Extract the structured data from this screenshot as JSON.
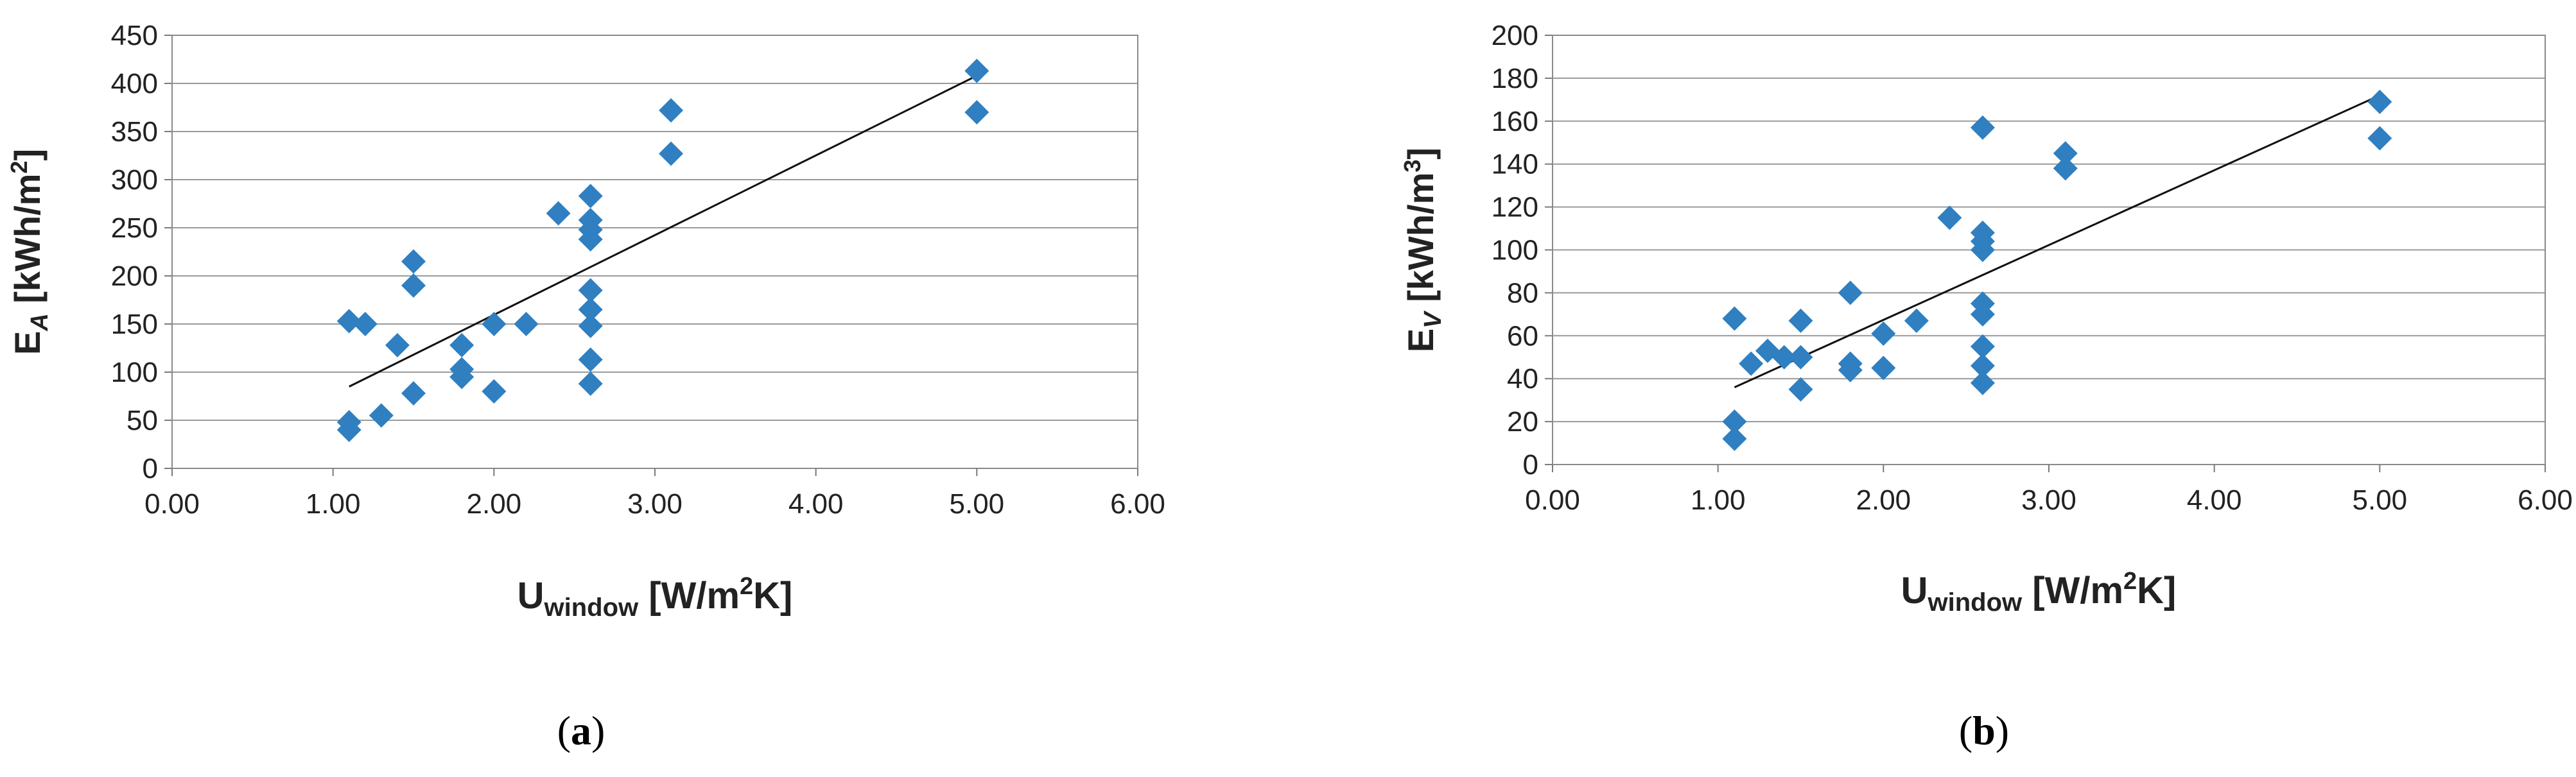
{
  "chart_data": [
    {
      "type": "scatter",
      "title": "",
      "panel_label": {
        "open": "(",
        "letter": "a",
        "close": ")"
      },
      "xlabel": {
        "main": "U",
        "sub": "window",
        "rest": " [W/m",
        "sup": "2",
        "rest2": "K]"
      },
      "ylabel": {
        "main": "E",
        "sub": "A",
        "rest": " [kWh/m",
        "sup": "2",
        "rest2": "]"
      },
      "xlim": [
        0,
        6
      ],
      "ylim": [
        0,
        450
      ],
      "xticks": [
        "0.00",
        "1.00",
        "2.00",
        "3.00",
        "4.00",
        "5.00",
        "6.00"
      ],
      "yticks": [
        "0",
        "50",
        "100",
        "150",
        "200",
        "250",
        "300",
        "350",
        "400",
        "450"
      ],
      "grid": "horizontal",
      "marker": "diamond",
      "marker_color": "#2f7fc1",
      "trendline": {
        "x": [
          1.1,
          5.0
        ],
        "y": [
          85,
          408
        ]
      },
      "points": [
        [
          1.1,
          153
        ],
        [
          1.1,
          48
        ],
        [
          1.1,
          40
        ],
        [
          1.2,
          150
        ],
        [
          1.3,
          55
        ],
        [
          1.4,
          128
        ],
        [
          1.5,
          215
        ],
        [
          1.5,
          190
        ],
        [
          1.5,
          78
        ],
        [
          1.8,
          128
        ],
        [
          1.8,
          103
        ],
        [
          1.8,
          95
        ],
        [
          2.0,
          150
        ],
        [
          2.0,
          80
        ],
        [
          2.2,
          150
        ],
        [
          2.4,
          265
        ],
        [
          2.6,
          283
        ],
        [
          2.6,
          258
        ],
        [
          2.6,
          248
        ],
        [
          2.6,
          238
        ],
        [
          2.6,
          185
        ],
        [
          2.6,
          165
        ],
        [
          2.6,
          148
        ],
        [
          2.6,
          113
        ],
        [
          2.6,
          88
        ],
        [
          3.1,
          372
        ],
        [
          3.1,
          327
        ],
        [
          5.0,
          413
        ],
        [
          5.0,
          370
        ]
      ]
    },
    {
      "type": "scatter",
      "title": "",
      "panel_label": {
        "open": "(",
        "letter": "b",
        "close": ")"
      },
      "xlabel": {
        "main": "U",
        "sub": "window",
        "rest": " [W/m",
        "sup": "2",
        "rest2": "K]"
      },
      "ylabel": {
        "main": "E",
        "sub": "V",
        "rest": " [kWh/m",
        "sup": "3",
        "rest2": "]"
      },
      "xlim": [
        0,
        6
      ],
      "ylim": [
        0,
        200
      ],
      "xticks": [
        "0.00",
        "1.00",
        "2.00",
        "3.00",
        "4.00",
        "5.00",
        "6.00"
      ],
      "yticks": [
        "0",
        "20",
        "40",
        "60",
        "80",
        "100",
        "120",
        "140",
        "160",
        "180",
        "200"
      ],
      "grid": "horizontal",
      "marker": "diamond",
      "marker_color": "#2f7fc1",
      "trendline": {
        "x": [
          1.1,
          5.0
        ],
        "y": [
          36,
          172
        ]
      },
      "points": [
        [
          1.1,
          68
        ],
        [
          1.1,
          20
        ],
        [
          1.1,
          12
        ],
        [
          1.2,
          47
        ],
        [
          1.3,
          53
        ],
        [
          1.4,
          50
        ],
        [
          1.5,
          67
        ],
        [
          1.5,
          50
        ],
        [
          1.5,
          35
        ],
        [
          1.8,
          80
        ],
        [
          1.8,
          47
        ],
        [
          1.8,
          44
        ],
        [
          2.0,
          61
        ],
        [
          2.0,
          45
        ],
        [
          2.2,
          67
        ],
        [
          2.4,
          115
        ],
        [
          2.6,
          157
        ],
        [
          2.6,
          108
        ],
        [
          2.6,
          104
        ],
        [
          2.6,
          100
        ],
        [
          2.6,
          75
        ],
        [
          2.6,
          70
        ],
        [
          2.6,
          55
        ],
        [
          2.6,
          46
        ],
        [
          2.6,
          38
        ],
        [
          3.1,
          145
        ],
        [
          3.1,
          138
        ],
        [
          5.0,
          169
        ],
        [
          5.0,
          152
        ]
      ]
    }
  ]
}
